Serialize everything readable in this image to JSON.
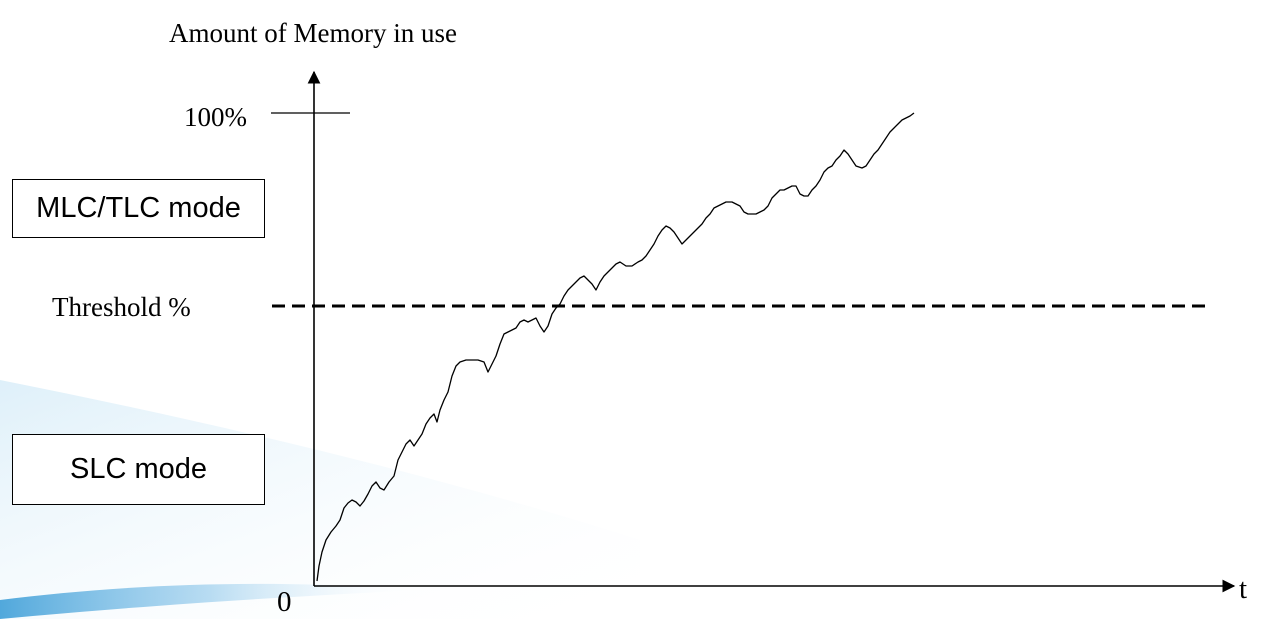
{
  "diagram": {
    "y_axis_title": "Amount of Memory in use",
    "y_tick_top": "100%",
    "threshold_label": "Threshold %",
    "origin_label": "0",
    "x_axis_label": "t",
    "upper_mode_label": "MLC/TLC mode",
    "lower_mode_label": "SLC mode"
  },
  "colors": {
    "line": "#000000",
    "swoosh_light": "#d6ecf8",
    "swoosh_mid": "#8cc6ea",
    "swoosh_dark": "#3f9fd8"
  }
}
